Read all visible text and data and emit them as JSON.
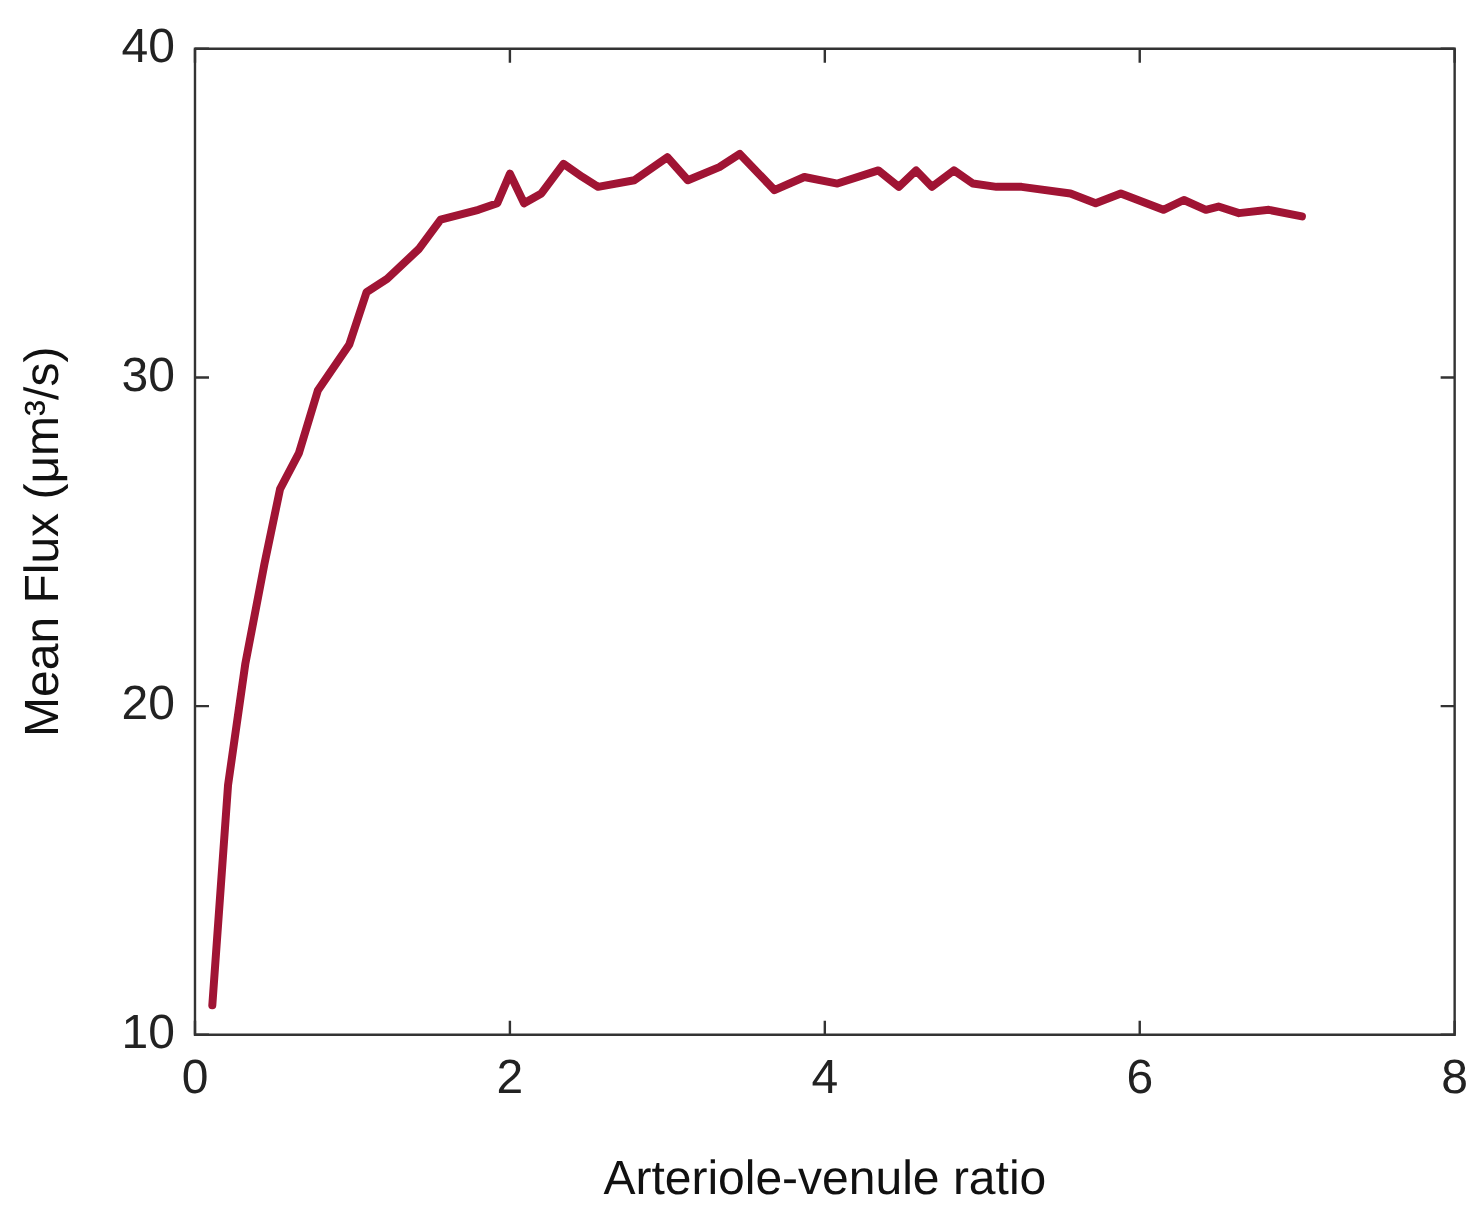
{
  "chart_data": {
    "type": "line",
    "xlabel": "Arteriole-venule ratio",
    "ylabel": "Mean Flux (μm³/s)",
    "xlim": [
      0,
      8
    ],
    "xticks": [
      0,
      2,
      4,
      6,
      8
    ],
    "ylim": [
      10,
      40
    ],
    "yticks": [
      10,
      20,
      30,
      40
    ],
    "grid": false,
    "legend": false,
    "marker": "none",
    "line_style": "solid",
    "series": [
      {
        "color": "#a01434",
        "x": [
          0.11,
          0.21,
          0.32,
          0.44,
          0.54,
          0.66,
          0.78,
          0.98,
          1.09,
          1.22,
          1.42,
          1.56,
          1.8,
          1.92,
          2.0,
          2.09,
          2.2,
          2.34,
          2.46,
          2.56,
          2.79,
          3.0,
          3.13,
          3.33,
          3.46,
          3.68,
          3.87,
          4.08,
          4.34,
          4.47,
          4.58,
          4.68,
          4.82,
          4.94,
          5.09,
          5.25,
          5.56,
          5.72,
          5.88,
          6.15,
          6.28,
          6.42,
          6.5,
          6.63,
          6.82,
          7.03
        ],
        "values": [
          10.9,
          17.6,
          21.3,
          24.3,
          26.6,
          27.7,
          29.6,
          31.0,
          32.6,
          33.0,
          33.9,
          34.8,
          35.1,
          35.3,
          36.2,
          35.3,
          35.6,
          36.5,
          36.1,
          35.8,
          36.0,
          36.7,
          36.0,
          36.4,
          36.8,
          35.7,
          36.1,
          35.9,
          36.3,
          35.8,
          36.3,
          35.8,
          36.3,
          35.9,
          35.8,
          35.8,
          35.6,
          35.3,
          35.6,
          35.1,
          35.4,
          35.1,
          35.2,
          35.0,
          35.1,
          34.9
        ]
      }
    ]
  }
}
